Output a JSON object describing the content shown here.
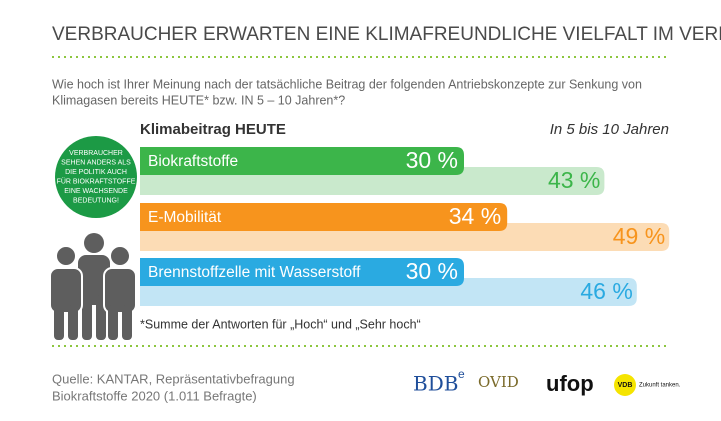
{
  "chart_data": {
    "type": "bar",
    "orientation": "horizontal",
    "title": "VERBRAUCHER ERWARTEN EINE KLIMAFREUNDLICHE VIELFALT IM VERKEHR",
    "subtitle_lines": [
      "Wie hoch ist Ihrer Meinung nach der tatsächliche Beitrag der folgenden Antriebskonzepte zur Senkung von",
      "Klimagasen bereits HEUTE* bzw. IN 5 – 10 Jahren*?"
    ],
    "categories": [
      "Biokraftstoffe",
      "E-Mobilität",
      "Brennstoffzelle mit Wasserstoff"
    ],
    "series": [
      {
        "name": "Klimabeitrag HEUTE",
        "colors": [
          "#3cb54a",
          "#f7941d",
          "#2aaae1"
        ],
        "values": [
          30,
          34,
          30
        ],
        "value_labels": [
          "30 %",
          "34 %",
          "30 %"
        ]
      },
      {
        "name": "In 5 bis 10 Jahren",
        "colors": [
          "#c9e9cc",
          "#fcdcb5",
          "#c2e5f5"
        ],
        "label_colors": [
          "#3cb54a",
          "#f7941d",
          "#2aaae1"
        ],
        "values": [
          43,
          49,
          46
        ],
        "value_labels": [
          "43 %",
          "49 %",
          "46 %"
        ]
      }
    ],
    "footnote": "*Summe der Antworten für „Hoch“ und „Sehr hoch“"
  },
  "badge": {
    "lines": [
      "VERBRAUCHER",
      "SEHEN ANDERS ALS",
      "DIE POLITIK AUCH",
      "FÜR BIOKRAFTSTOFFE",
      "EINE WACHSENDE",
      "BEDEUTUNG!"
    ]
  },
  "source": {
    "lines": [
      "Quelle: KANTAR, Repräsentativbefragung",
      "Biokraftstoffe 2020 (1.011 Befragte)"
    ]
  },
  "logos": {
    "bdb": "BDB",
    "bdb_sup": "e",
    "ovid": "OVID",
    "ufop": "ufop",
    "vdb": "VDB",
    "vdb_claim": "Zukunft tanken."
  }
}
